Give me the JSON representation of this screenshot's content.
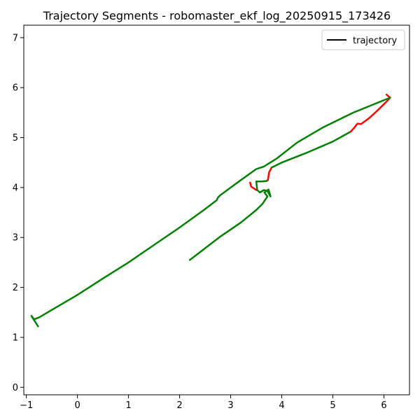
{
  "chart_data": {
    "type": "line",
    "title": "Trajectory Segments - robomaster_ekf_log_20250915_173426",
    "xlabel": "",
    "ylabel": "",
    "xlim": [
      -1.05,
      6.5
    ],
    "ylim": [
      -0.15,
      7.25
    ],
    "x_ticks": [
      -1,
      0,
      1,
      2,
      3,
      4,
      5,
      6
    ],
    "y_ticks": [
      0,
      1,
      2,
      3,
      4,
      5,
      6,
      7
    ],
    "grid": false,
    "legend": {
      "placement": "top-right",
      "entries": [
        {
          "label": "trajectory",
          "color": "#000000"
        }
      ]
    },
    "colors": {
      "trajectory": "#000000",
      "segment_ok": "#008000",
      "segment_bad": "#ff0000"
    },
    "segments": [
      {
        "color": "#008000",
        "points": [
          [
            2.2,
            2.55
          ],
          [
            2.8,
            3.02
          ],
          [
            3.2,
            3.3
          ],
          [
            3.5,
            3.55
          ],
          [
            3.62,
            3.67
          ],
          [
            3.72,
            3.82
          ],
          [
            3.66,
            3.9
          ],
          [
            3.74,
            3.96
          ],
          [
            3.78,
            3.82
          ],
          [
            3.72,
            3.93
          ],
          [
            3.65,
            3.95
          ],
          [
            3.57,
            3.9
          ],
          [
            3.52,
            3.95
          ],
          [
            3.5,
            4.12
          ],
          [
            3.6,
            4.12
          ],
          [
            3.7,
            4.13
          ],
          [
            3.73,
            4.15
          ]
        ]
      },
      {
        "color": "#ff0000",
        "points": [
          [
            3.73,
            4.15
          ],
          [
            3.75,
            4.3
          ],
          [
            3.8,
            4.4
          ]
        ]
      },
      {
        "color": "#008000",
        "points": [
          [
            3.8,
            4.4
          ],
          [
            4.0,
            4.5
          ],
          [
            4.5,
            4.7
          ],
          [
            5.0,
            4.92
          ],
          [
            5.35,
            5.12
          ]
        ]
      },
      {
        "color": "#ff0000",
        "points": [
          [
            5.35,
            5.12
          ],
          [
            5.42,
            5.2
          ],
          [
            5.48,
            5.28
          ],
          [
            5.55,
            5.27
          ],
          [
            5.7,
            5.38
          ],
          [
            5.85,
            5.52
          ],
          [
            5.95,
            5.62
          ],
          [
            6.05,
            5.72
          ],
          [
            6.12,
            5.8
          ],
          [
            6.05,
            5.86
          ]
        ]
      },
      {
        "color": "#008000",
        "points": [
          [
            6.12,
            5.8
          ],
          [
            5.4,
            5.5
          ],
          [
            4.8,
            5.2
          ],
          [
            4.3,
            4.9
          ],
          [
            3.9,
            4.58
          ],
          [
            3.65,
            4.42
          ],
          [
            3.5,
            4.37
          ],
          [
            3.2,
            4.15
          ],
          [
            2.8,
            3.85
          ],
          [
            2.75,
            3.8
          ],
          [
            2.73,
            3.75
          ],
          [
            2.5,
            3.57
          ],
          [
            2.0,
            3.2
          ],
          [
            1.5,
            2.85
          ],
          [
            1.0,
            2.5
          ],
          [
            0.5,
            2.18
          ],
          [
            0.0,
            1.85
          ],
          [
            -0.5,
            1.55
          ],
          [
            -0.75,
            1.4
          ],
          [
            -0.85,
            1.36
          ],
          [
            -0.9,
            1.43
          ],
          [
            -0.77,
            1.22
          ]
        ]
      },
      {
        "color": "#ff0000",
        "points": [
          [
            3.5,
            3.95
          ],
          [
            3.4,
            4.02
          ],
          [
            3.38,
            4.1
          ]
        ]
      }
    ]
  }
}
